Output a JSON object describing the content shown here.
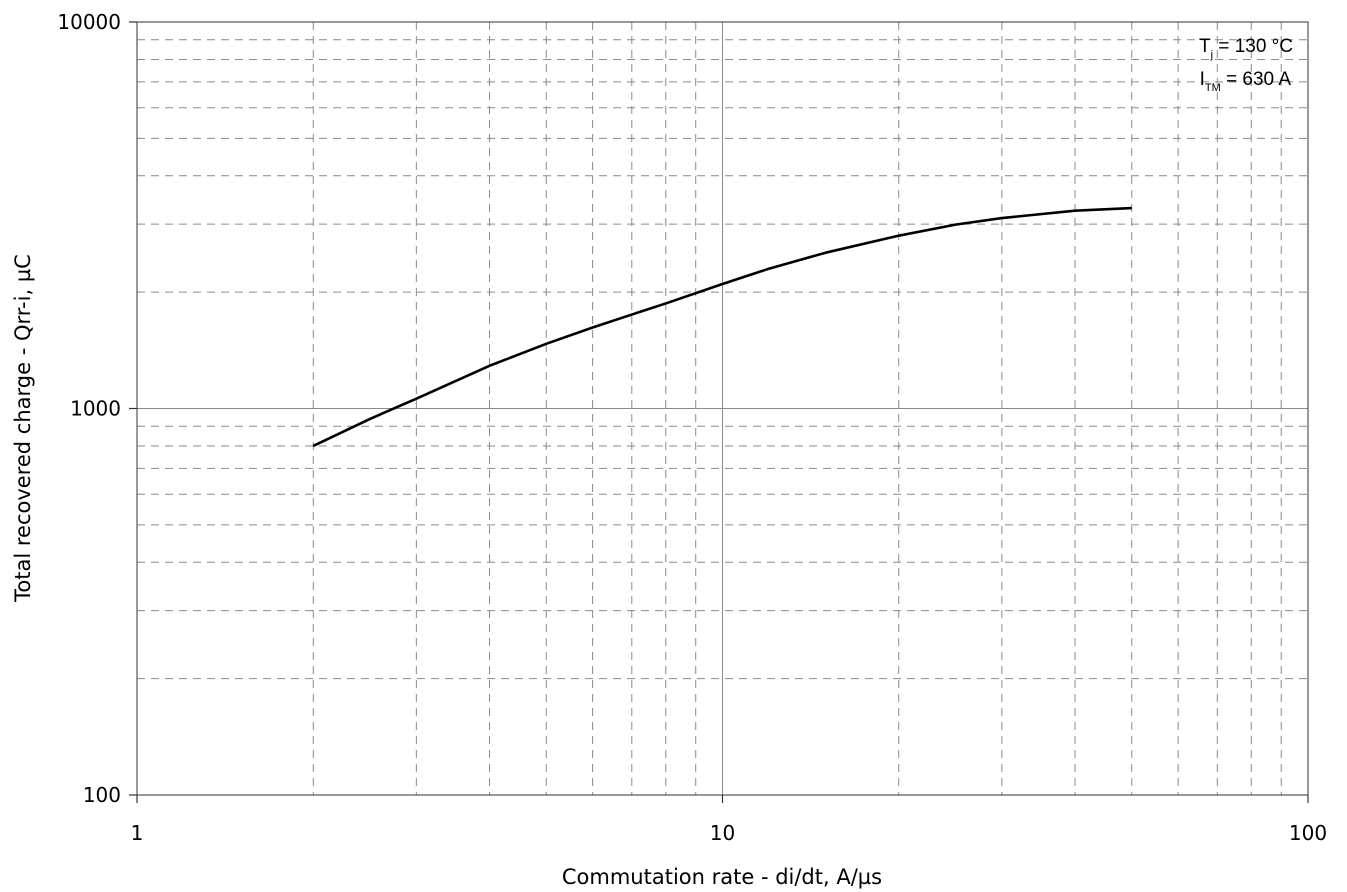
{
  "chart_data": {
    "type": "line",
    "xlabel": "Commutation rate - di/dt, A/µs",
    "ylabel": "Total recovered charge - Qrr-i, µC",
    "xscale": "log",
    "yscale": "log",
    "xlim": [
      1,
      100
    ],
    "ylim": [
      100,
      10000
    ],
    "x_ticks": [
      "1",
      "10",
      "100"
    ],
    "y_ticks": [
      "100",
      "1000",
      "10000"
    ],
    "grid": true,
    "annotations": [
      {
        "main": "T",
        "sub": "j",
        "rest": " = 130 °C"
      },
      {
        "main": "I",
        "sub": "TM",
        "rest": " = 630 A"
      }
    ],
    "series": [
      {
        "x": [
          2,
          2.5,
          3,
          4,
          5,
          6,
          7,
          8,
          10,
          12,
          15,
          20,
          25,
          30,
          40,
          50
        ],
        "y": [
          800,
          940,
          1060,
          1290,
          1470,
          1620,
          1750,
          1870,
          2100,
          2300,
          2530,
          2800,
          2990,
          3110,
          3250,
          3300
        ]
      }
    ]
  }
}
